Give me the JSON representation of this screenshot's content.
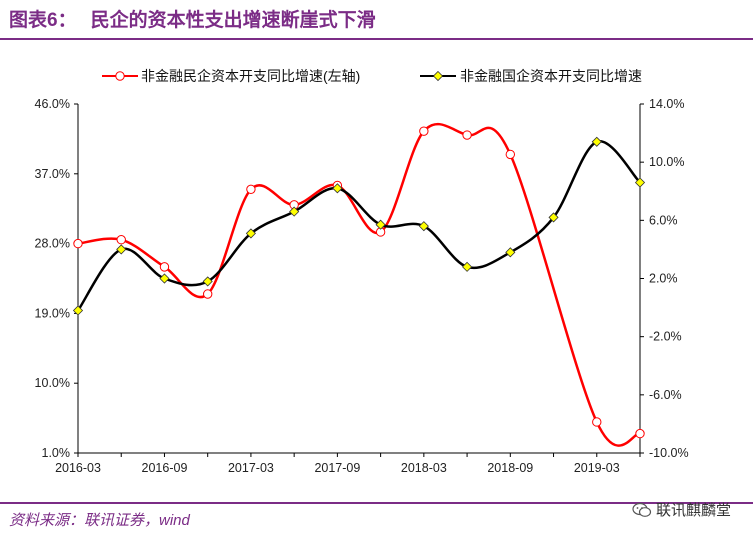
{
  "header": {
    "label": "图表6：",
    "title": "民企的资本性支出增速断崖式下滑"
  },
  "footer": {
    "source": "资料来源：联讯证券，wind",
    "watermark": "联讯麒麟堂"
  },
  "colors": {
    "accent": "#7b2c86",
    "series_private": "#ff0000",
    "series_state": "#000000",
    "marker_state_fill": "#ffff00"
  },
  "chart_data": {
    "type": "line",
    "x": [
      "2016-03",
      "2016-06",
      "2016-09",
      "2016-12",
      "2017-03",
      "2017-06",
      "2017-09",
      "2017-12",
      "2018-03",
      "2018-06",
      "2018-09",
      "2018-12",
      "2019-03",
      "2019-06"
    ],
    "x_tick_labels": [
      "2016-03",
      "2016-09",
      "2017-03",
      "2017-09",
      "2018-03",
      "2018-09",
      "2019-03"
    ],
    "y_left": {
      "lim": [
        1.0,
        46.0
      ],
      "ticks": [
        "1.0%",
        "10.0%",
        "19.0%",
        "28.0%",
        "37.0%",
        "46.0%"
      ]
    },
    "y_right": {
      "lim": [
        -10.0,
        14.0
      ],
      "ticks": [
        "-10.0%",
        "-6.0%",
        "-2.0%",
        "2.0%",
        "6.0%",
        "10.0%",
        "14.0%"
      ]
    },
    "series": [
      {
        "name": "非金融民企资本开支同比增速(左轴)",
        "axis": "left",
        "values": [
          28.0,
          28.5,
          25.0,
          21.5,
          35.0,
          33.0,
          35.5,
          29.5,
          42.5,
          42.0,
          39.5,
          null,
          5.0,
          3.5
        ]
      },
      {
        "name": "非金融国企资本开支同比增速",
        "axis": "right",
        "values": [
          -0.2,
          4.0,
          2.0,
          1.8,
          5.1,
          6.6,
          8.2,
          5.7,
          5.6,
          2.8,
          3.8,
          6.2,
          11.4,
          8.6
        ]
      }
    ],
    "legend": "top-center",
    "grid": false
  }
}
